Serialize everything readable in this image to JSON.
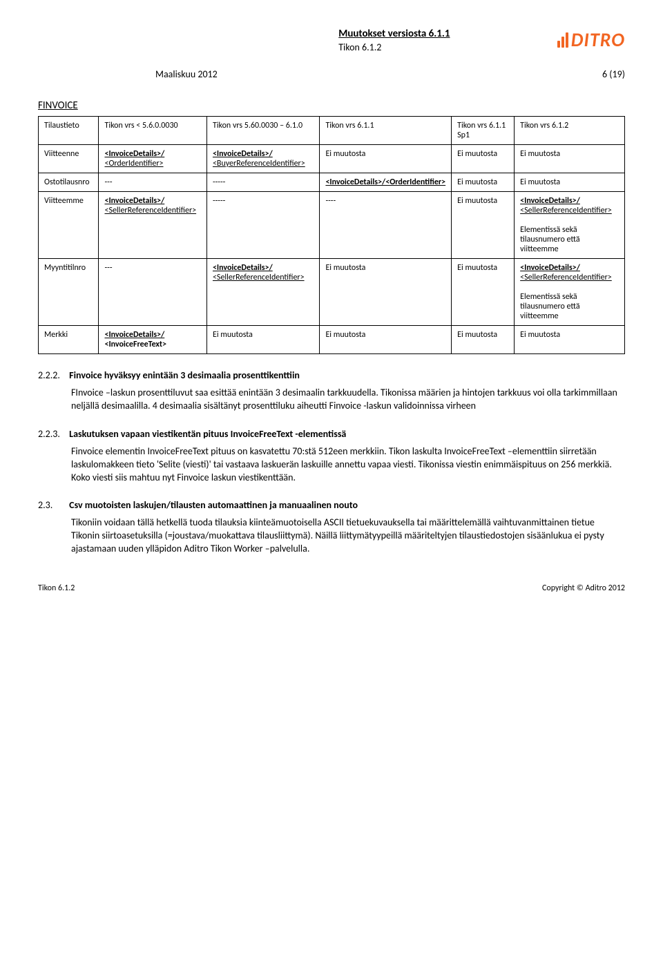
{
  "header": {
    "title": "Muutokset versiosta 6.1.1",
    "subtitle": "Tikon 6.1.2",
    "logo_text": "DITRO",
    "logo_color": "#f26522"
  },
  "date_line": {
    "left": "Maaliskuu 2012",
    "right": "6 (19)"
  },
  "finvoice_label": "FINVOICE",
  "table": {
    "col_widths": [
      "90px",
      "160px",
      "170px",
      "130px",
      "105px",
      "165px"
    ],
    "rows": [
      [
        {
          "text": "Tilaustieto"
        },
        {
          "text": "Tikon vrs < 5.6.0.0030"
        },
        {
          "text": "Tikon vrs  5.60.0030 – 6.1.0"
        },
        {
          "text": "Tikon vrs  6.1.1"
        },
        {
          "text": "Tikon vrs 6.1.1 Sp1"
        },
        {
          "text": "Tikon vrs 6.1.2"
        }
      ],
      [
        {
          "text": "Viitteenne"
        },
        {
          "html": "<InvoiceDetails>/\n<OrderIdentifier>",
          "ul": true
        },
        {
          "html": "<InvoiceDetails>/\n<BuyerReferenceIdentifier>",
          "ul": true
        },
        {
          "text": "Ei muutosta"
        },
        {
          "text": "Ei muutosta"
        },
        {
          "text": "Ei muutosta"
        }
      ],
      [
        {
          "text": "Ostotilausnro"
        },
        {
          "text": "---"
        },
        {
          "text": "-----"
        },
        {
          "html": "<InvoiceDetails>/<OrderIdentifier>",
          "ul": true
        },
        {
          "text": "Ei muutosta"
        },
        {
          "text": "Ei muutosta"
        }
      ],
      [
        {
          "text": "Viitteemme"
        },
        {
          "html": "<InvoiceDetails>/\n<SellerReferenceIdentifier>",
          "ul": true
        },
        {
          "text": "-----"
        },
        {
          "text": "----"
        },
        {
          "text": "Ei muutosta"
        },
        {
          "html": "<span class='b u'>&lt;InvoiceDetails&gt;/</span>\n<span class='u'>&lt;SellerReferenceIdentifier&gt;</span>\n\nElementissä sekä tilausnumero että viitteemme",
          "raw": true
        }
      ],
      [
        {
          "text": "Myyntitilnro"
        },
        {
          "text": "---"
        },
        {
          "html": "<InvoiceDetails>/\n<SellerReferenceIdentifier>",
          "ul": true
        },
        {
          "text": "Ei muutosta"
        },
        {
          "text": "Ei muutosta"
        },
        {
          "html": "<span class='b u'>&lt;InvoiceDetails&gt;/</span>\n<span class='u'>&lt;SellerReferenceIdentifier&gt;</span>\n\nElementissä sekä tilausnumero että viitteemme",
          "raw": true
        }
      ],
      [
        {
          "text": "Merkki"
        },
        {
          "html": "<span class='b u'>&lt;InvoiceDetails&gt;/</span>\n<span class='b'>&lt;InvoiceFreeText&gt;</span>",
          "raw": true
        },
        {
          "text": "Ei muutosta"
        },
        {
          "text": "Ei muutosta"
        },
        {
          "text": "Ei muutosta"
        },
        {
          "text": "Ei muutosta"
        }
      ]
    ]
  },
  "sections": [
    {
      "num": "2.2.2.",
      "title": "Finvoice hyväksyy enintään 3 desimaalia prosenttikenttiin",
      "body": "FInvoice –laskun prosenttiluvut saa esittää enintään 3 desimaalin tarkkuudella. Tikonissa määrien ja hintojen tarkkuus voi olla tarkimmillaan neljällä desimaalilla.  4 desimaalia sisältänyt prosenttiluku aiheutti Finvoice -laskun validoinnissa virheen"
    },
    {
      "num": "2.2.3.",
      "title": "Laskutuksen vapaan viestikentän pituus InvoiceFreeText -elementissä",
      "body": "Finvoice elementin InvoiceFreeText pituus on kasvatettu 70:stä 512een merkkiin. Tikon laskulta InvoiceFreeText –elementtiin siirretään laskulomakkeen tieto 'Selite (viesti)' tai vastaava laskuerän laskuille annettu vapaa viesti. Tikonissa viestin enimmäispituus on 256 merkkiä. Koko viesti siis mahtuu nyt Finvoice laskun viestikenttään."
    },
    {
      "num": "2.3.",
      "title": "Csv muotoisten laskujen/tilausten automaattinen ja manuaalinen nouto",
      "body": "Tikoniin voidaan tällä hetkellä tuoda tilauksia kiinteämuotoisella ASCII tietuekuvauksella tai määrittelemällä vaihtuvanmittainen tietue Tikonin siirtoasetuksilla (=joustava/muokattava tilausliittymä). Näillä liittymätyypeillä määriteltyjen tilaustiedostojen sisäänlukua ei pysty ajastamaan uuden ylläpidon Aditro Tikon Worker –palvelulla."
    }
  ],
  "footer": {
    "left": "Tikon 6.1.2",
    "right": "Copyright © Aditro 2012"
  }
}
